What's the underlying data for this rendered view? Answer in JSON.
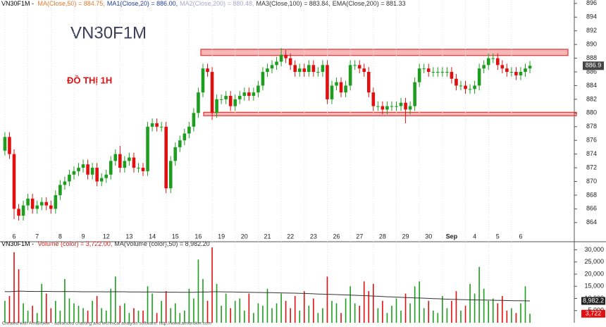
{
  "chart_data": {
    "type": "candlestick",
    "header": [
      {
        "text": "VN30F1M - ",
        "color": "#000000"
      },
      {
        "text": "MA(Close,50) = 884.75,",
        "color": "#e07a2e"
      },
      {
        "text": "MA1(Close,20) = 886.00,",
        "color": "#1f3c9a"
      },
      {
        "text": "MA2(Close,200) = 880.48,",
        "color": "#a8a8cc"
      },
      {
        "text": "MA3(Close,100) = 883.84,",
        "color": "#333333"
      },
      {
        "text": "EMA(Close,200) = 881.33",
        "color": "#333333"
      }
    ],
    "watermark": "VN30F1M",
    "note": "ĐỒ THỊ 1H",
    "categories": [
      null,
      null,
      "6",
      null,
      null,
      null,
      null,
      "7",
      null,
      null,
      null,
      null,
      "8",
      null,
      null,
      null,
      null,
      "9",
      null,
      null,
      null,
      null,
      "12",
      null,
      null,
      null,
      null,
      "13",
      null,
      null,
      null,
      null,
      "14",
      null,
      null,
      null,
      null,
      "15",
      null,
      null,
      null,
      null,
      "16",
      null,
      null,
      null,
      null,
      "19",
      null,
      null,
      null,
      null,
      "20",
      null,
      null,
      null,
      null,
      "21",
      null,
      null,
      null,
      null,
      "22",
      null,
      null,
      null,
      null,
      "23",
      null,
      null,
      null,
      null,
      "26",
      null,
      null,
      null,
      null,
      "27",
      null,
      null,
      null,
      null,
      "28",
      null,
      null,
      null,
      null,
      "29",
      null,
      null,
      null,
      null,
      "30",
      null,
      null,
      null,
      null,
      "Sep",
      null,
      null,
      null,
      null,
      "4",
      null,
      null,
      null,
      null,
      "5",
      null,
      null,
      null,
      null,
      "6",
      null,
      null
    ],
    "open": [
      874.5,
      876.5,
      874,
      866,
      865,
      866.5,
      867.5,
      866,
      866.5,
      867,
      866.5,
      866,
      868,
      869.5,
      870,
      871,
      871.5,
      872,
      872.5,
      871,
      872,
      870,
      870.5,
      871,
      873,
      874,
      872,
      873,
      873.5,
      872,
      872,
      871.5,
      878,
      878.5,
      878,
      878,
      869,
      873,
      875,
      876,
      877,
      878,
      880,
      883,
      886.5,
      886,
      880,
      882,
      882,
      882.5,
      881,
      882,
      882.5,
      883,
      882.5,
      883,
      884,
      886,
      886.5,
      887,
      887.5,
      888.5,
      888,
      887,
      886,
      886.5,
      886,
      887,
      886,
      886,
      887,
      882,
      884,
      884.5,
      883,
      884,
      887,
      887,
      886.5,
      886,
      883,
      881,
      881,
      880.5,
      881,
      881,
      881,
      881.5,
      880.5,
      881,
      884.5,
      886.5,
      886.5,
      886,
      886,
      886,
      886,
      886,
      885,
      884,
      884,
      883.5,
      883.5,
      884,
      886.5,
      887,
      888,
      888,
      887,
      886.5,
      886,
      886,
      885.5,
      886,
      886.5
    ],
    "high": [
      877.2,
      877.2,
      874.7,
      866.7,
      867.2,
      868.2,
      868.2,
      867.2,
      867.7,
      867.7,
      867.2,
      868.7,
      870.2,
      870.7,
      871.7,
      872.2,
      872.7,
      873.2,
      873.2,
      872.7,
      872.7,
      871.2,
      871.7,
      873.7,
      874.7,
      875.2,
      873.7,
      874.2,
      874.2,
      872.7,
      872.7,
      878.7,
      879.2,
      879.2,
      878.7,
      878.7,
      873.7,
      875.7,
      876.7,
      877.7,
      878.7,
      880.7,
      883.7,
      887.2,
      887.2,
      886.7,
      882.7,
      882.7,
      883.2,
      883.2,
      882.7,
      883.2,
      883.7,
      883.7,
      883.7,
      884.7,
      886.7,
      887.2,
      887.7,
      888.2,
      889.5,
      889.2,
      888.7,
      887.7,
      887.2,
      887.2,
      887.7,
      887.7,
      886.7,
      887.7,
      887.7,
      884.7,
      885.2,
      885.2,
      884.7,
      887.7,
      887.7,
      887.7,
      887.2,
      886.7,
      883.7,
      881.7,
      881.7,
      881.7,
      881.7,
      881.7,
      882.2,
      882.2,
      881.7,
      885.2,
      887.2,
      887.2,
      887.2,
      886.7,
      886.7,
      886.7,
      886.7,
      886.7,
      885.7,
      884.7,
      884.7,
      884.2,
      884.7,
      887.2,
      887.7,
      888.7,
      888.7,
      888.7,
      887.7,
      887.2,
      886.7,
      886.7,
      886.7,
      887.2,
      887.6
    ],
    "low": [
      873.8,
      873.3,
      864.5,
      864.3,
      864.3,
      865.8,
      865.3,
      865.3,
      865.8,
      865.8,
      865.3,
      865.3,
      867.3,
      868.8,
      869.3,
      870.3,
      870.8,
      871.3,
      870.3,
      870.3,
      869.3,
      869.3,
      869.8,
      870.3,
      872.3,
      871.3,
      871.3,
      872.3,
      871.3,
      871.3,
      870.8,
      870.8,
      877.3,
      877.3,
      877.3,
      868.3,
      868.3,
      872.3,
      874.3,
      875.3,
      876.3,
      877.3,
      879.3,
      882.3,
      885.3,
      879,
      879.3,
      881.3,
      881.3,
      880.3,
      880.3,
      881.3,
      881.8,
      881.8,
      881.8,
      882.3,
      883.3,
      885.3,
      885.8,
      886.3,
      886.8,
      887.3,
      886.3,
      885.3,
      885.3,
      885.3,
      885.3,
      885.3,
      885.3,
      885.3,
      881.3,
      881.3,
      883.3,
      882.3,
      882.3,
      883.3,
      886.3,
      885.8,
      885.3,
      882.3,
      880.3,
      880.3,
      879.8,
      879.8,
      880.3,
      880.3,
      880.3,
      878.5,
      879.8,
      880.3,
      883.8,
      885.8,
      885.3,
      885.3,
      885.3,
      885.3,
      885.3,
      884.3,
      883.3,
      883.3,
      882.8,
      882.8,
      882.8,
      883.3,
      885.8,
      886.3,
      887.3,
      886.3,
      885.8,
      885.3,
      885.3,
      884.8,
      884.8,
      885.3,
      885.8
    ],
    "close": [
      876.5,
      874,
      866,
      865,
      866.5,
      867.5,
      866,
      866.5,
      867,
      866.5,
      866,
      868,
      869.5,
      870,
      871,
      871.5,
      872,
      872.5,
      871,
      872,
      870,
      870.5,
      871,
      873,
      874,
      872,
      873,
      873.5,
      872,
      872,
      871.5,
      878,
      878.5,
      878,
      878,
      869,
      873,
      875,
      876,
      877,
      878,
      880,
      883,
      886.5,
      886,
      880,
      882,
      882,
      882.5,
      881,
      882,
      882.5,
      883,
      882.5,
      883,
      884,
      886,
      886.5,
      887,
      887.5,
      888.5,
      888,
      887,
      886,
      886.5,
      886,
      887,
      886,
      886,
      887,
      882,
      884,
      884.5,
      883,
      884,
      887,
      887,
      886.5,
      886,
      883,
      881,
      881,
      880.5,
      881,
      881,
      881,
      881.5,
      880.5,
      881,
      884.5,
      886.5,
      886.5,
      886,
      886,
      886,
      886,
      886,
      885,
      884,
      884,
      883.5,
      883.5,
      884,
      886.5,
      887,
      888,
      888,
      887,
      886.5,
      886,
      886,
      885.5,
      886,
      886.5,
      886.9
    ],
    "up_color": "#1e9e1e",
    "down_color": "#e01010",
    "ylim": [
      861.2,
      896.5
    ],
    "yticks": [
      864,
      866,
      868,
      870,
      872,
      874,
      876,
      878,
      880,
      882,
      884,
      886,
      888,
      890,
      892,
      894,
      896
    ],
    "zones": [
      {
        "low": 888.4,
        "high": 889.3,
        "color": "#e83030"
      },
      {
        "low": 879.6,
        "high": 880.1,
        "color": "#e83030"
      }
    ],
    "volume": {
      "header": [
        {
          "text": "VN30F1M - ",
          "color": "#000000"
        },
        {
          "text": "Volume (color) = 3,722.00,",
          "color": "#d02020"
        },
        {
          "text": "MA(Volume (color),50) = 8,982.20",
          "color": "#333333"
        }
      ],
      "values": [
        9000,
        11000,
        29000,
        22000,
        8000,
        5000,
        7000,
        4000,
        16000,
        12000,
        6000,
        9000,
        5000,
        18000,
        10000,
        8000,
        7000,
        6000,
        5000,
        9000,
        11000,
        6000,
        5000,
        14000,
        19000,
        7000,
        8000,
        4000,
        6000,
        5000,
        5000,
        15000,
        12000,
        4000,
        9000,
        13000,
        6000,
        8000,
        4000,
        5000,
        14000,
        10000,
        26000,
        18000,
        9000,
        31000,
        16000,
        7000,
        12000,
        6000,
        9000,
        10000,
        5000,
        12000,
        4000,
        8000,
        7000,
        14000,
        6000,
        8000,
        12000,
        9000,
        6000,
        11000,
        5000,
        13000,
        7000,
        10000,
        4000,
        6000,
        19000,
        9000,
        8000,
        4000,
        10000,
        15000,
        8000,
        7000,
        17000,
        13000,
        16000,
        6000,
        9000,
        4000,
        7000,
        10000,
        5000,
        12000,
        8000,
        15000,
        17000,
        6000,
        9000,
        5000,
        4000,
        11000,
        6000,
        9000,
        13000,
        5000,
        7000,
        16000,
        12000,
        23000,
        14000,
        9000,
        10000,
        8000,
        11000,
        5000,
        6000,
        4000,
        8000,
        15000,
        3722
      ],
      "ma": [
        12800,
        12780,
        12900,
        13000,
        12950,
        12900,
        12880,
        12850,
        12900,
        12880,
        12850,
        12820,
        12800,
        12850,
        12830,
        12800,
        12780,
        12760,
        12740,
        12750,
        12760,
        12740,
        12720,
        12740,
        12780,
        12760,
        12740,
        12700,
        12680,
        12660,
        12640,
        12660,
        12650,
        12620,
        12600,
        12600,
        12580,
        12560,
        12540,
        12520,
        12540,
        12540,
        12600,
        12650,
        12640,
        12750,
        12760,
        12720,
        12700,
        12660,
        12620,
        12600,
        12560,
        12540,
        12500,
        12460,
        12420,
        12400,
        12360,
        12320,
        12280,
        12240,
        12200,
        12160,
        12100,
        12040,
        11980,
        11900,
        11820,
        11760,
        11700,
        11640,
        11580,
        11500,
        11440,
        11380,
        11300,
        11220,
        11140,
        11060,
        10980,
        10880,
        10780,
        10700,
        10620,
        10540,
        10460,
        10380,
        10300,
        10240,
        10180,
        10100,
        10020,
        9950,
        9880,
        9800,
        9720,
        9650,
        9580,
        9520,
        9480,
        9440,
        9400,
        9380,
        9340,
        9300,
        9260,
        9220,
        9180,
        9140,
        9100,
        9060,
        9030,
        9000,
        8982.2
      ],
      "ma_color": "#333333",
      "ylim": [
        0,
        31000
      ],
      "yticks": [
        {
          "value": 5000,
          "label": "5,000"
        },
        {
          "value": 10000,
          "label": "10,000"
        },
        {
          "value": 15000,
          "label": "15,000"
        },
        {
          "value": 20000,
          "label": "20,000"
        },
        {
          "value": 25000,
          "label": "25,000"
        },
        {
          "value": 30000,
          "label": "30,000"
        }
      ],
      "badges": [
        {
          "value": 8982.2,
          "label": "8,982.2",
          "color": "#222222"
        },
        {
          "value": 3722,
          "label": "3,722",
          "color": "#e01010"
        }
      ]
    },
    "footer": "Created with AmiBroker - advanced charting and technical analysis software. http://www.amibroker.com"
  }
}
